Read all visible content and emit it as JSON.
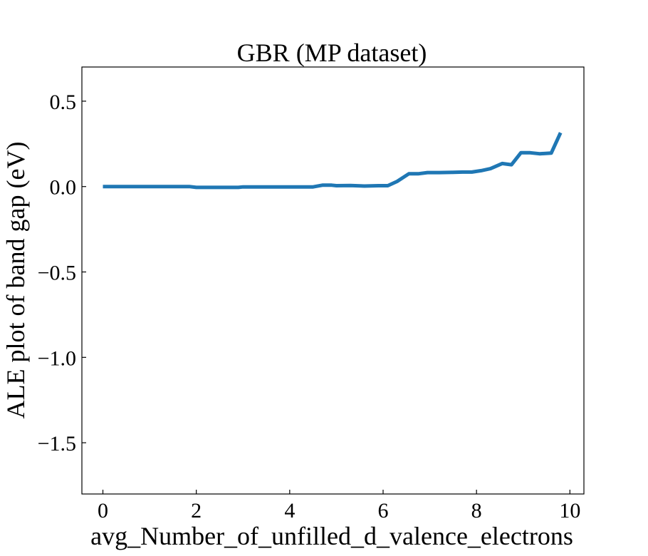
{
  "chart_data": {
    "type": "line",
    "title": "GBR (MP dataset)",
    "xlabel": "avg_Number_of_unfilled_d_valence_electrons",
    "ylabel": "ALE plot of band gap (eV)",
    "xlim": [
      -0.45,
      10.3
    ],
    "ylim": [
      -1.8,
      0.7
    ],
    "xticks": [
      0,
      2,
      4,
      6,
      8,
      10
    ],
    "xtick_labels": [
      "0",
      "2",
      "4",
      "6",
      "8",
      "10"
    ],
    "yticks": [
      0.5,
      0.0,
      -0.5,
      -1.0,
      -1.5
    ],
    "ytick_labels": [
      "0.5",
      "0.0",
      "−0.5",
      "−1.0",
      "−1.5"
    ],
    "grid": false,
    "series": [
      {
        "color": "#1f77b4",
        "x": [
          0.0,
          0.5,
          1.0,
          1.5,
          1.85,
          2.0,
          2.5,
          2.9,
          3.0,
          3.5,
          4.0,
          4.5,
          4.7,
          4.9,
          5.0,
          5.3,
          5.6,
          5.9,
          6.1,
          6.3,
          6.55,
          6.75,
          6.95,
          7.2,
          7.5,
          7.7,
          7.9,
          8.1,
          8.3,
          8.55,
          8.75,
          8.95,
          9.15,
          9.35,
          9.6,
          9.8
        ],
        "y": [
          0.0,
          0.0,
          0.0,
          0.0,
          0.0,
          -0.005,
          -0.005,
          -0.005,
          -0.002,
          -0.002,
          -0.002,
          -0.002,
          0.008,
          0.008,
          0.005,
          0.006,
          0.003,
          0.005,
          0.005,
          0.03,
          0.075,
          0.075,
          0.082,
          0.082,
          0.083,
          0.085,
          0.085,
          0.093,
          0.105,
          0.135,
          0.128,
          0.198,
          0.198,
          0.192,
          0.196,
          0.315
        ]
      }
    ]
  }
}
